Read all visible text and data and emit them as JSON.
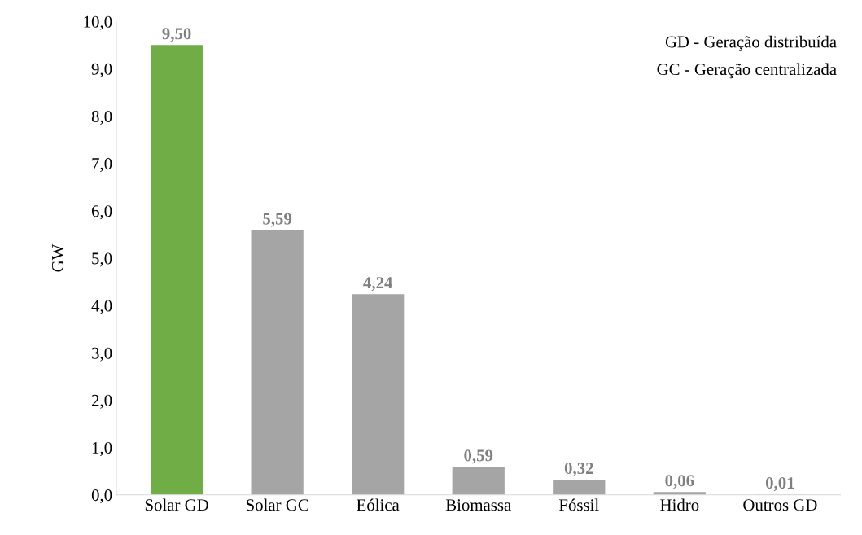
{
  "chart_data": {
    "type": "bar",
    "ylabel": "GW",
    "categories": [
      "Solar GD",
      "Solar GC",
      "Eólica",
      "Biomassa",
      "Fóssil",
      "Hidro",
      "Outros GD"
    ],
    "values": [
      9.5,
      5.59,
      4.24,
      0.59,
      0.32,
      0.06,
      0.01
    ],
    "colors": [
      "#70ad47",
      "#a5a5a5",
      "#a5a5a5",
      "#a5a5a5",
      "#a5a5a5",
      "#a5a5a5",
      "#a5a5a5"
    ],
    "value_labels": [
      "9,50",
      "5,59",
      "4,24",
      "0,59",
      "0,32",
      "0,06",
      "0,01"
    ],
    "ylim": [
      0,
      10
    ],
    "yticks": [
      {
        "value": 0,
        "label": "0,0"
      },
      {
        "value": 1,
        "label": "1,0"
      },
      {
        "value": 2,
        "label": "2,0"
      },
      {
        "value": 3,
        "label": "3,0"
      },
      {
        "value": 4,
        "label": "4,0"
      },
      {
        "value": 5,
        "label": "5,0"
      },
      {
        "value": 6,
        "label": "6,0"
      },
      {
        "value": 7,
        "label": "7,0"
      },
      {
        "value": 8,
        "label": "8,0"
      },
      {
        "value": 9,
        "label": "9,0"
      },
      {
        "value": 10,
        "label": "10,0"
      }
    ],
    "annotations": [
      "GD - Geração distribuída",
      "GC - Geração centralizada"
    ],
    "grid": false,
    "legend": false
  }
}
